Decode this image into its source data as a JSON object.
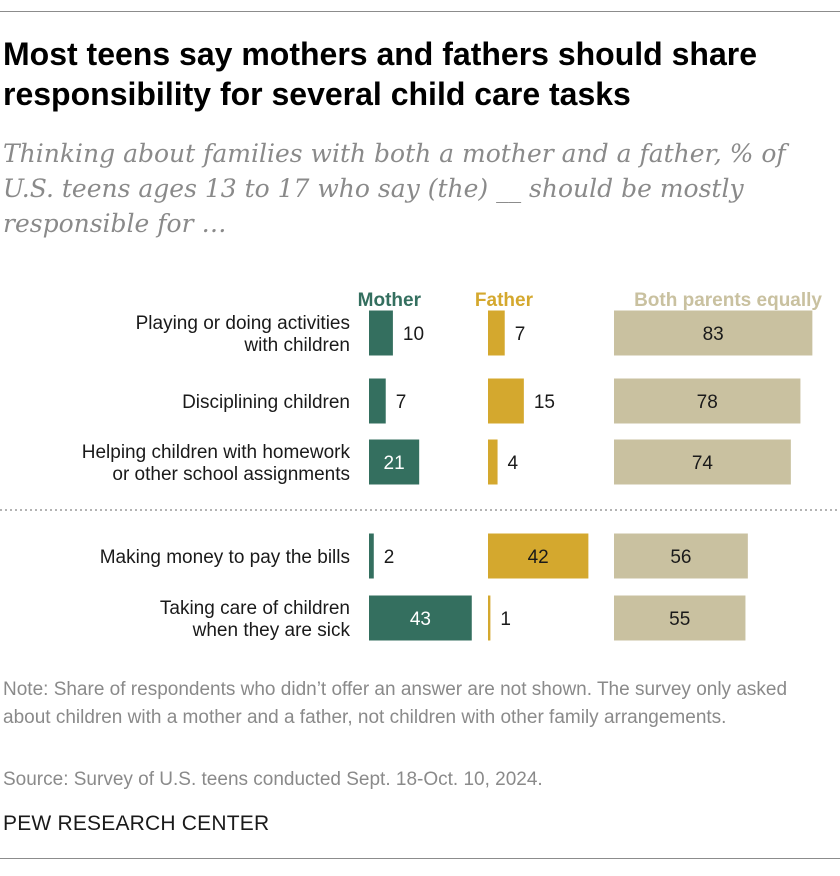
{
  "title": "Most teens say mothers and fathers should share responsibility for several child care tasks",
  "subtitle": "Thinking about families with both a mother and a father, % of U.S. teens ages 13 to 17 who say (the) __ should be mostly responsible for …",
  "note": "Note: Share of respondents who didn’t offer an answer are not shown. The survey only asked about children with a mother and a father, not children with other family arrangements.",
  "source": "Source: Survey of U.S. teens conducted Sept. 18-Oct. 10, 2024.",
  "brand": "PEW RESEARCH CENTER",
  "colors": {
    "mother": "#346f5f",
    "father": "#d4a82e",
    "both": "#c9c1a0"
  },
  "chart_data": {
    "type": "bar",
    "orientation": "horizontal",
    "legend_placement": "top",
    "categories": [
      [
        "Playing or doing activities",
        "with children"
      ],
      [
        "Disciplining children"
      ],
      [
        "Helping children with homework",
        "or other school assignments"
      ],
      [
        "Making money to pay the bills"
      ],
      [
        "Taking care of children",
        "when they are sick"
      ]
    ],
    "series": [
      {
        "name": "Mother",
        "values": [
          10,
          7,
          21,
          2,
          43
        ]
      },
      {
        "name": "Father",
        "values": [
          7,
          15,
          4,
          42,
          1
        ]
      },
      {
        "name": "Both parents equally",
        "values": [
          83,
          78,
          74,
          56,
          55
        ]
      }
    ]
  }
}
